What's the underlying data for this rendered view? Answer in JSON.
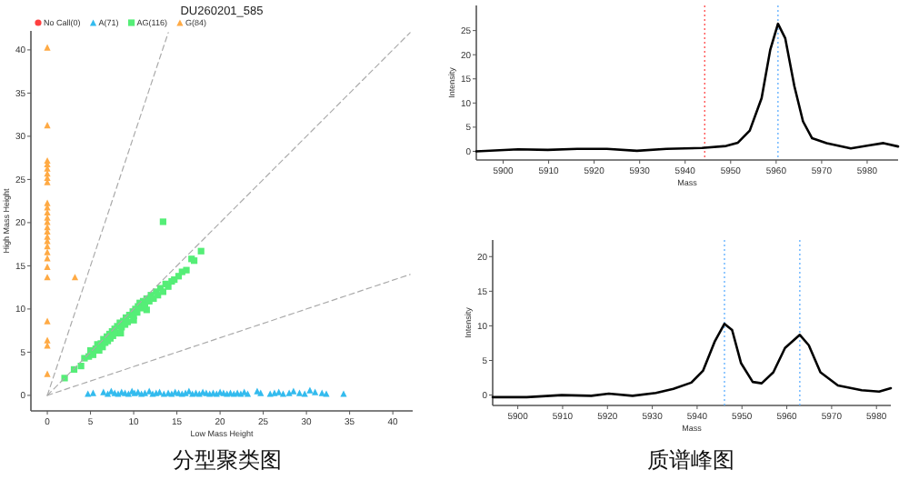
{
  "chart_data": [
    {
      "type": "scatter",
      "title": "DU260201_585",
      "xlabel": "Low Mass Height",
      "ylabel": "High Mass Height",
      "xlim": [
        -1.9,
        42.3
      ],
      "ylim": [
        -1.8,
        42.2
      ],
      "xticks": [
        0,
        5,
        10,
        15,
        20,
        25,
        30,
        35,
        40
      ],
      "yticks": [
        0,
        5,
        10,
        15,
        20,
        25,
        30,
        35,
        40
      ],
      "legend": "top left",
      "annotations": [
        "分型聚类图"
      ],
      "series": [
        {
          "name": "No Call(0)",
          "color": "#ff4040",
          "marker": "circle"
        },
        {
          "name": "A(71)",
          "color": "#33bbee",
          "marker": "triangle",
          "x": [
            4.7,
            5.3,
            6.5,
            7,
            7.4,
            7.8,
            8.2,
            8.6,
            9,
            9.4,
            9.8,
            10.1,
            10.5,
            10.9,
            11.3,
            11.8,
            12.2,
            12.6,
            13,
            13.5,
            14,
            14.4,
            14.8,
            15.2,
            15.6,
            16,
            16.4,
            16.8,
            17.2,
            17.6,
            18,
            18.4,
            18.8,
            19.2,
            19.6,
            20,
            20.4,
            20.8,
            21.2,
            21.6,
            22,
            22.4,
            22.8,
            23.2,
            24.3,
            24.7,
            25.8,
            26.3,
            26.8,
            27.3,
            28,
            28.5,
            29.2,
            29.8,
            30.4,
            31,
            31.8,
            32.3,
            34.3
          ],
          "values": [
            0.2,
            0.3,
            0.4,
            0.2,
            0.5,
            0.3,
            0.2,
            0.4,
            0.3,
            0.2,
            0.5,
            0.3,
            0.4,
            0.2,
            0.3,
            0.5,
            0.2,
            0.3,
            0.4,
            0.2,
            0.3,
            0.2,
            0.4,
            0.3,
            0.2,
            0.3,
            0.5,
            0.2,
            0.3,
            0.2,
            0.4,
            0.3,
            0.2,
            0.3,
            0.2,
            0.4,
            0.3,
            0.2,
            0.3,
            0.2,
            0.3,
            0.2,
            0.4,
            0.2,
            0.5,
            0.3,
            0.2,
            0.3,
            0.4,
            0.2,
            0.3,
            0.5,
            0.3,
            0.2,
            0.6,
            0.4,
            0.3,
            0.2,
            0.2
          ]
        },
        {
          "name": "AG(116)",
          "color": "#55ee77",
          "marker": "square",
          "x": [
            2.0,
            3.1,
            3.9,
            4.3,
            4.8,
            5.0,
            5.3,
            5.6,
            5.8,
            6.0,
            6.2,
            6.4,
            6.5,
            6.7,
            6.9,
            7.0,
            7.2,
            7.3,
            7.5,
            7.6,
            7.8,
            8.0,
            8.1,
            8.4,
            8.6,
            8.8,
            9.0,
            9.1,
            9.3,
            9.5,
            9.9,
            10.0,
            10.2,
            10.4,
            10.5,
            10.7,
            10.9,
            11.1,
            11.3,
            11.5,
            11.8,
            12.0,
            12.3,
            12.6,
            12.8,
            13.1,
            13.4,
            13.7,
            14.0,
            14.4,
            14.7,
            15.2,
            15.6,
            16.1,
            16.7,
            17.0,
            17.8,
            13.4,
            8.5,
            10.0,
            11.5
          ],
          "values": [
            2.0,
            3.0,
            3.4,
            4.3,
            4.5,
            5.2,
            4.7,
            5.4,
            5.9,
            5.2,
            6.0,
            5.6,
            6.5,
            6.1,
            6.8,
            6.3,
            7.1,
            6.6,
            7.4,
            6.9,
            7.7,
            7.2,
            8.0,
            8.4,
            7.9,
            8.6,
            8.2,
            9.0,
            8.5,
            9.3,
            9.7,
            9.2,
            10.0,
            9.6,
            10.3,
            10.7,
            10.1,
            10.9,
            10.4,
            11.2,
            10.9,
            11.6,
            11.2,
            12.0,
            11.6,
            12.4,
            12.0,
            12.9,
            12.6,
            13.2,
            13.4,
            13.8,
            14.3,
            14.5,
            15.8,
            15.6,
            16.7,
            20.1,
            7.2,
            8.7,
            9.9
          ]
        },
        {
          "name": "G(84)",
          "color": "#ffaa44",
          "marker": "triangle",
          "x": [
            0,
            0,
            0,
            0,
            0,
            0,
            0,
            0,
            0,
            0,
            0,
            0,
            0,
            0,
            0,
            0,
            0,
            0,
            0,
            0,
            0,
            0,
            0,
            0,
            0,
            0,
            3.2
          ],
          "values": [
            40.3,
            31.3,
            27.2,
            26.8,
            26.3,
            25.7,
            25.2,
            24.7,
            22.3,
            21.8,
            21.2,
            20.6,
            20.1,
            19.5,
            19.0,
            18.4,
            17.9,
            17.3,
            16.6,
            15.9,
            14.9,
            13.7,
            8.6,
            6.4,
            5.8,
            2.5,
            13.7
          ]
        },
        {
          "type": "line",
          "color": "#aaaaaa",
          "line_style": "dashed",
          "x": [
            0,
            14
          ],
          "values": [
            0,
            42
          ]
        },
        {
          "type": "line",
          "color": "#aaaaaa",
          "line_style": "dashed",
          "x": [
            0,
            42
          ],
          "values": [
            0,
            42
          ]
        },
        {
          "type": "line",
          "color": "#aaaaaa",
          "line_style": "dashed",
          "x": [
            0,
            42
          ],
          "values": [
            0,
            14
          ]
        }
      ]
    },
    {
      "type": "line",
      "xlabel": "Mass",
      "ylabel": "Intensity",
      "xlim": [
        5894.1,
        5986.8
      ],
      "ylim": [
        -1.8,
        30.2
      ],
      "xticks": [
        5900,
        5910,
        5920,
        5930,
        5940,
        5950,
        5960,
        5970,
        5980
      ],
      "yticks": [
        0,
        5,
        10,
        15,
        20,
        25
      ],
      "line_style": "solid",
      "ref_lines": [
        {
          "axis": "x",
          "value": 5944.3,
          "color": "#ff5555",
          "line_style": "dotted"
        },
        {
          "axis": "x",
          "value": 5960.4,
          "color": "#66b3ff",
          "line_style": "dotted"
        }
      ],
      "series": [
        {
          "color": "#000000",
          "x": [
            5894.1,
            5903.3,
            5909.8,
            5916.3,
            5922.8,
            5929.4,
            5935.9,
            5943.7,
            5949,
            5951.6,
            5954.2,
            5956.8,
            5958.7,
            5960.4,
            5962,
            5964,
            5965.9,
            5967.9,
            5971.1,
            5976.4,
            5980.3,
            5983.6,
            5986.8
          ],
          "values": [
            0,
            0.4,
            0.3,
            0.5,
            0.5,
            0.1,
            0.5,
            0.7,
            1.1,
            1.8,
            4.3,
            11,
            21,
            26.4,
            23.4,
            13.5,
            6.2,
            2.7,
            1.7,
            0.6,
            1.2,
            1.7,
            1.0
          ]
        }
      ]
    },
    {
      "type": "line",
      "xlabel": "Mass",
      "ylabel": "Intensity",
      "xlim": [
        5894.4,
        5983.2
      ],
      "ylim": [
        -1.5,
        22.4
      ],
      "xticks": [
        5900,
        5910,
        5920,
        5930,
        5940,
        5950,
        5960,
        5970,
        5980
      ],
      "yticks": [
        0,
        5,
        10,
        15,
        20
      ],
      "line_style": "solid",
      "annotations": [
        "质谱峰图"
      ],
      "ref_lines": [
        {
          "axis": "x",
          "value": 5946.1,
          "color": "#66b3ff",
          "line_style": "dotted"
        },
        {
          "axis": "x",
          "value": 5962.9,
          "color": "#66b3ff",
          "line_style": "dotted"
        }
      ],
      "series": [
        {
          "color": "#000000",
          "x": [
            5894.4,
            5902,
            5909.8,
            5916.4,
            5920.3,
            5925.6,
            5930.8,
            5934.7,
            5938.7,
            5941.3,
            5943.9,
            5946.1,
            5947.8,
            5949.8,
            5952.4,
            5954.4,
            5957,
            5959.6,
            5962.9,
            5964.9,
            5967.5,
            5971.4,
            5976.7,
            5980.6,
            5983.2
          ],
          "values": [
            -0.3,
            -0.3,
            0,
            -0.1,
            0.2,
            -0.1,
            0.3,
            0.9,
            1.8,
            3.5,
            7.7,
            10.3,
            9.4,
            4.6,
            1.9,
            1.7,
            3.3,
            6.8,
            8.7,
            7.2,
            3.3,
            1.4,
            0.7,
            0.5,
            1.0
          ]
        }
      ]
    }
  ]
}
